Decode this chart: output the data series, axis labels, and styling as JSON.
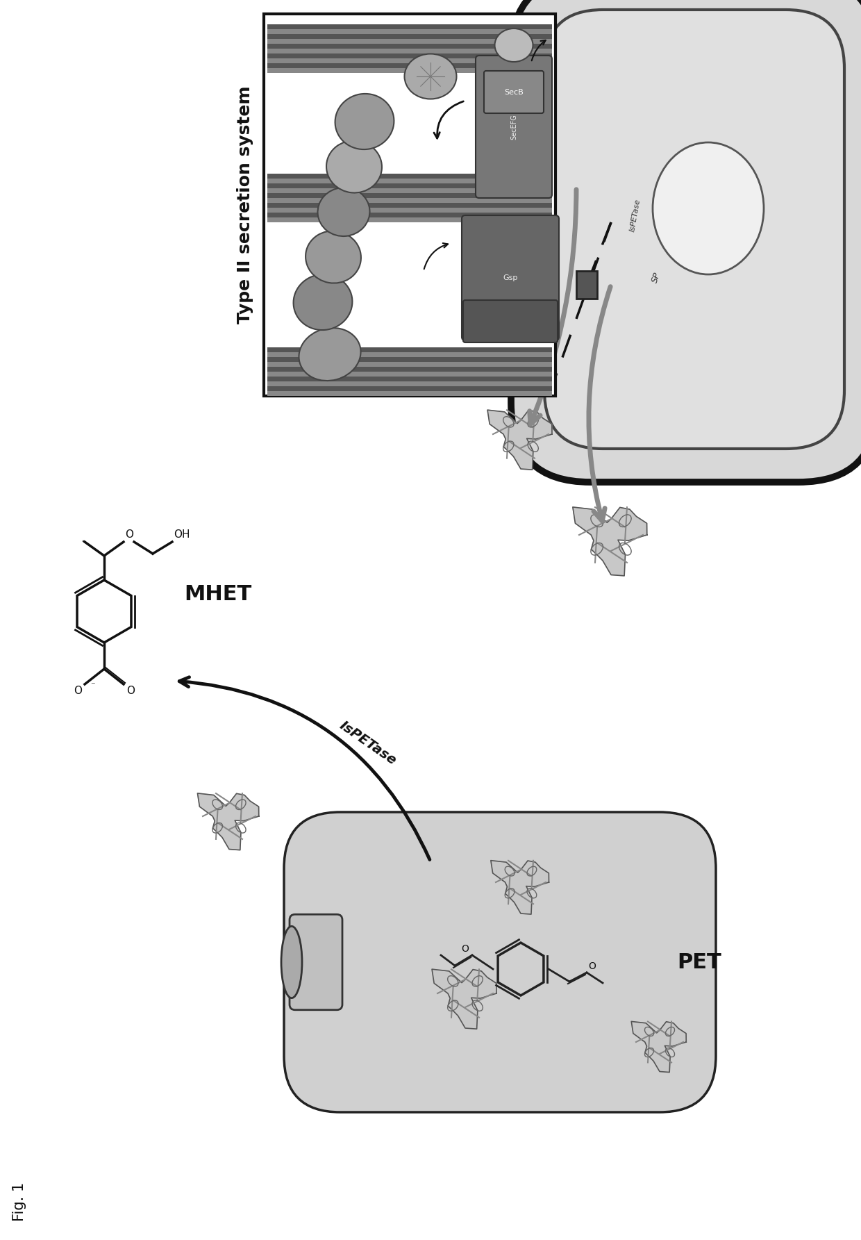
{
  "fig_label": "Fig. 1",
  "background_color": "#ffffff",
  "fig_width": 12.4,
  "fig_height": 17.85,
  "labels": {
    "mhet": "MHET",
    "pet": "PET",
    "ispetase": "IsPETase",
    "type2": "Type II secretion system",
    "sp_ispetase": "IsPETase",
    "sp": "SP",
    "secb": "SecB",
    "secefg": "SecEFG",
    "gsp": "Gsp"
  },
  "colors": {
    "background": "#ffffff",
    "black": "#111111",
    "dark_gray": "#444444",
    "medium_gray": "#777777",
    "light_gray": "#bbbbbb",
    "very_light_gray": "#dddddd",
    "cell_fill": "#d0d0d0",
    "membrane_dark": "#666666",
    "membrane_light": "#999999"
  }
}
